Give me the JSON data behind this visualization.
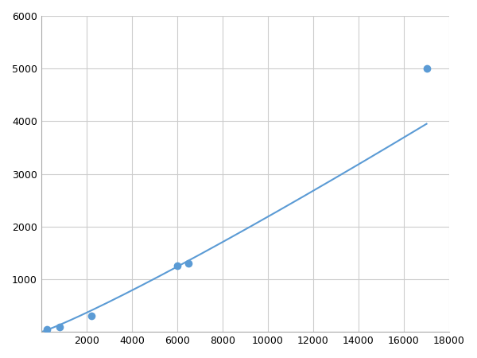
{
  "x_points": [
    250,
    800,
    2200,
    6000,
    6500,
    17000
  ],
  "y_points": [
    50,
    100,
    310,
    1250,
    1300,
    5000
  ],
  "line_color": "#5b9bd5",
  "marker_color": "#5b9bd5",
  "marker_size": 7,
  "linewidth": 1.5,
  "xlim": [
    0,
    18000
  ],
  "ylim": [
    0,
    6000
  ],
  "xticks": [
    0,
    2000,
    4000,
    6000,
    8000,
    10000,
    12000,
    14000,
    16000,
    18000
  ],
  "yticks": [
    0,
    1000,
    2000,
    3000,
    4000,
    5000,
    6000
  ],
  "grid_color": "#cccccc",
  "background_color": "#ffffff",
  "figure_background": "#ffffff"
}
